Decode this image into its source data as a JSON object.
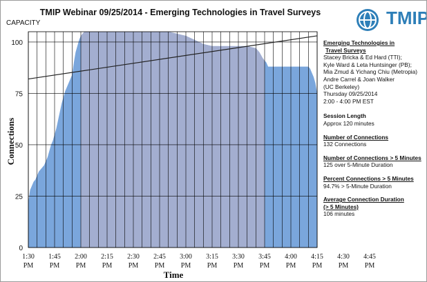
{
  "title": "TMIP  Webinar 09/25/2014 - Emerging Technologies  in Travel Surveys",
  "capacity_label": "CAPACITY",
  "logo_text": "TMIP",
  "info": {
    "event_title_line1": "Emerging Technologies  in",
    "event_title_line2": "Travel Surveys",
    "presenters": [
      "Stacey Bricka & Ed Hard (TTI);",
      "Kyle Ward & Leta Huntsinger (PB);",
      "Mia Zmud & Yichang Chiu (Metropia)",
      "Andre Carrel & Joan Walker",
      "(UC Berkeley)"
    ],
    "date": "Thursday 09/25/2014",
    "time": "2:00 - 4:00 PM EST",
    "session_length_label": "Session Length",
    "session_length_value": "Approx   120 minutes",
    "connections_label": "Number of Connections",
    "connections_value": "132 Connections",
    "connections_5min_label": "Number of Connections   > 5 Minutes",
    "connections_5min_value": "125 over 5-Minute Duration",
    "percent_label": "Percent Connections   > 5 Minutes",
    "percent_value": "94.7% > 5-Minute Duration",
    "avg_label_line1": "Average Connection  Duration",
    "avg_label_line2": "(> 5 Minutes)",
    "avg_value": " 106 minutes"
  },
  "chart_data": {
    "type": "area",
    "xlabel": "Time",
    "ylabel": "Connections",
    "x_tick_labels": [
      [
        "1:30",
        "PM"
      ],
      [
        "1:45",
        "PM"
      ],
      [
        "2:00",
        "PM"
      ],
      [
        "2:15",
        "PM"
      ],
      [
        "2:30",
        "PM"
      ],
      [
        "2:45",
        "PM"
      ],
      [
        "3:00",
        "PM"
      ],
      [
        "3:15",
        "PM"
      ],
      [
        "3:30",
        "PM"
      ],
      [
        "3:45",
        "PM"
      ],
      [
        "4:00",
        "PM"
      ],
      [
        "4:15",
        "PM"
      ],
      [
        "4:30",
        "PM"
      ],
      [
        "4:45",
        "PM"
      ]
    ],
    "x_range_minutes_after_1pm": [
      30,
      105
    ],
    "xlim": [
      30,
      195
    ],
    "ylim": [
      0,
      105
    ],
    "y_ticks": [
      0,
      25,
      50,
      75,
      100
    ],
    "grid": true,
    "session_window_minutes_after_1pm": [
      60,
      165
    ],
    "trendline": {
      "start_minute": 30,
      "start_value": 82,
      "end_minute": 195,
      "end_value": 103
    },
    "colors": {
      "area": "#7aa6dc",
      "session_shade": "#a3aed0",
      "trendline": "#222222",
      "grid": "#000000"
    },
    "series": [
      {
        "points_minute_value": [
          [
            30,
            22
          ],
          [
            31,
            28
          ],
          [
            32,
            30
          ],
          [
            33,
            32
          ],
          [
            34,
            33
          ],
          [
            35,
            35
          ],
          [
            36,
            37
          ],
          [
            37,
            38
          ],
          [
            38,
            39
          ],
          [
            39,
            40
          ],
          [
            40,
            42
          ],
          [
            41,
            44
          ],
          [
            42,
            47
          ],
          [
            43,
            50
          ],
          [
            44,
            52
          ],
          [
            45,
            55
          ],
          [
            46,
            58
          ],
          [
            47,
            62
          ],
          [
            48,
            66
          ],
          [
            49,
            70
          ],
          [
            50,
            73
          ],
          [
            51,
            76
          ],
          [
            52,
            78
          ],
          [
            53,
            80
          ],
          [
            54,
            82
          ],
          [
            55,
            84
          ],
          [
            56,
            90
          ],
          [
            57,
            95
          ],
          [
            58,
            98
          ],
          [
            59,
            101
          ],
          [
            60,
            103
          ],
          [
            61,
            104
          ],
          [
            62,
            105
          ],
          [
            100,
            105
          ],
          [
            110,
            105
          ],
          [
            115,
            104
          ],
          [
            120,
            103
          ],
          [
            125,
            101
          ],
          [
            130,
            99
          ],
          [
            135,
            98
          ],
          [
            140,
            98
          ],
          [
            145,
            98
          ],
          [
            150,
            98
          ],
          [
            155,
            98
          ],
          [
            160,
            97
          ],
          [
            162,
            95
          ],
          [
            164,
            92
          ],
          [
            166,
            90
          ],
          [
            167,
            88
          ],
          [
            170,
            88
          ],
          [
            180,
            88
          ],
          [
            190,
            88
          ],
          [
            191,
            87
          ],
          [
            192,
            85
          ],
          [
            193,
            83
          ],
          [
            194,
            80
          ],
          [
            195,
            75
          ]
        ]
      }
    ]
  }
}
